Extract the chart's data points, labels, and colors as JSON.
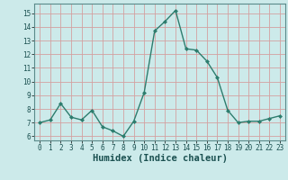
{
  "x": [
    0,
    1,
    2,
    3,
    4,
    5,
    6,
    7,
    8,
    9,
    10,
    11,
    12,
    13,
    14,
    15,
    16,
    17,
    18,
    19,
    20,
    21,
    22,
    23
  ],
  "y": [
    7.0,
    7.2,
    8.4,
    7.4,
    7.2,
    7.9,
    6.7,
    6.4,
    6.0,
    7.1,
    9.2,
    13.7,
    14.4,
    15.2,
    12.4,
    12.3,
    11.5,
    10.3,
    7.9,
    7.0,
    7.1,
    7.1,
    7.3,
    7.5
  ],
  "line_color": "#2d7d6e",
  "marker": "D",
  "marker_size": 2.0,
  "bg_color": "#cceaea",
  "grid_color": "#d4a0a0",
  "xlabel": "Humidex (Indice chaleur)",
  "ylim": [
    5.7,
    15.7
  ],
  "xlim": [
    -0.5,
    23.5
  ],
  "yticks": [
    6,
    7,
    8,
    9,
    10,
    11,
    12,
    13,
    14,
    15
  ],
  "xticks": [
    0,
    1,
    2,
    3,
    4,
    5,
    6,
    7,
    8,
    9,
    10,
    11,
    12,
    13,
    14,
    15,
    16,
    17,
    18,
    19,
    20,
    21,
    22,
    23
  ],
  "tick_fontsize": 5.5,
  "xlabel_fontsize": 7.5,
  "xlabel_fontweight": "bold"
}
